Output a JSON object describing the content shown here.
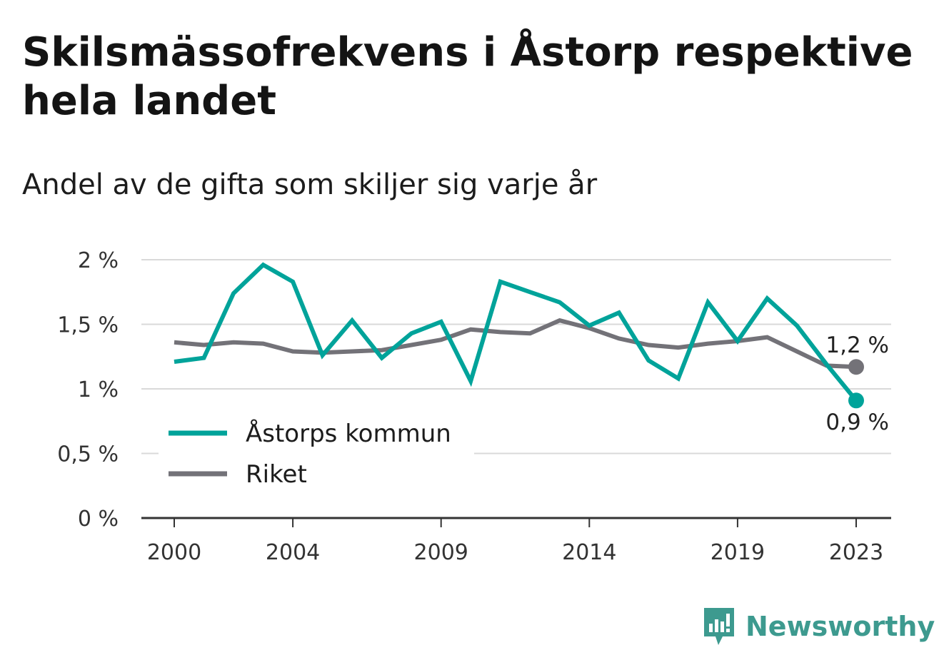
{
  "title": "Skilsmässofrekvens i Åstorp respektive hela landet",
  "subtitle": "Andel av de gifta som skiljer sig varje år",
  "brand": {
    "name": "Newsworthy",
    "icon": "newsworthy-logo-icon",
    "color": "#3d9a8f"
  },
  "chart_data": {
    "type": "line",
    "title": "Skilsmässofrekvens i Åstorp respektive hela landet",
    "subtitle": "Andel av de gifta som skiljer sig varje år",
    "x": [
      2000,
      2001,
      2002,
      2003,
      2004,
      2005,
      2006,
      2007,
      2008,
      2009,
      2010,
      2011,
      2012,
      2013,
      2014,
      2015,
      2016,
      2017,
      2018,
      2019,
      2020,
      2021,
      2022,
      2023
    ],
    "x_ticks": [
      "2000",
      "2004",
      "2009",
      "2014",
      "2019",
      "2023"
    ],
    "ylim": [
      0,
      2
    ],
    "y_ticks": [
      "0 %",
      "0,5 %",
      "1 %",
      "1,5 %",
      "2 %"
    ],
    "grid": true,
    "legend_position": "bottom-left",
    "series": [
      {
        "name": "Åstorps kommun",
        "color": "#00a39a",
        "values": [
          1.21,
          1.24,
          1.74,
          1.96,
          1.83,
          1.26,
          1.53,
          1.24,
          1.43,
          1.52,
          1.06,
          1.83,
          1.75,
          1.67,
          1.49,
          1.59,
          1.22,
          1.08,
          1.67,
          1.37,
          1.7,
          1.49,
          1.19,
          0.91
        ],
        "end_label": "0,9 %"
      },
      {
        "name": "Riket",
        "color": "#737278",
        "values": [
          1.36,
          1.34,
          1.36,
          1.35,
          1.29,
          1.28,
          1.29,
          1.3,
          1.34,
          1.38,
          1.46,
          1.44,
          1.43,
          1.53,
          1.47,
          1.39,
          1.34,
          1.32,
          1.35,
          1.37,
          1.4,
          1.29,
          1.18,
          1.17
        ],
        "end_label": "1,2 %"
      }
    ]
  }
}
